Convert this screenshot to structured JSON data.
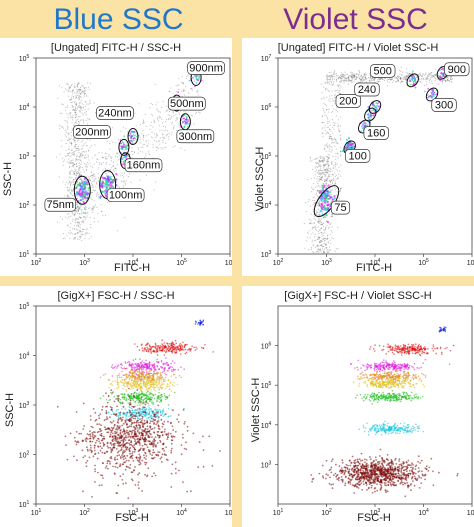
{
  "header": {
    "left_title": "Blue SSC",
    "right_title": "Violet SSC",
    "left_color": "#1f78c8",
    "right_color": "#7b2d90"
  },
  "chart_data": [
    {
      "type": "scatter",
      "title": "[Ungated] FITC-H / SSC-H",
      "xlabel": "FITC-H",
      "ylabel": "SSC-H",
      "xscale": "log",
      "yscale": "log",
      "xlim": [
        100,
        1000000
      ],
      "ylim": [
        10,
        100000
      ],
      "x_ticks": [
        "10^2",
        "10^3",
        "10^4",
        "10^5",
        "10^6"
      ],
      "y_ticks": [
        "10^1",
        "10^2",
        "10^3",
        "10^4",
        "10^5"
      ],
      "populations": [
        {
          "name": "75nm",
          "x": 900,
          "y": 200
        },
        {
          "name": "100nm",
          "x": 3000,
          "y": 260
        },
        {
          "name": "160nm",
          "x": 7000,
          "y": 800
        },
        {
          "name": "200nm",
          "x": 6500,
          "y": 1500
        },
        {
          "name": "240nm",
          "x": 10000,
          "y": 2500
        },
        {
          "name": "300nm",
          "x": 120000,
          "y": 5000
        },
        {
          "name": "500nm",
          "x": 80000,
          "y": 12000
        },
        {
          "name": "900nm",
          "x": 200000,
          "y": 40000
        }
      ]
    },
    {
      "type": "scatter",
      "title": "[Ungated] FITC-H / Violet SSC-H",
      "xlabel": "FITC-H",
      "ylabel": "Violet SSC-H",
      "xscale": "log",
      "yscale": "log",
      "xlim": [
        100,
        1000000
      ],
      "ylim": [
        1000,
        10000000
      ],
      "x_ticks": [
        "10^2",
        "10^3",
        "10^4",
        "10^5",
        "10^6"
      ],
      "y_ticks": [
        "10^3",
        "10^4",
        "10^5",
        "10^6",
        "10^7"
      ],
      "populations": [
        {
          "name": "75",
          "x": 1000,
          "y": 12000
        },
        {
          "name": "100",
          "x": 3000,
          "y": 150000
        },
        {
          "name": "160",
          "x": 6000,
          "y": 400000
        },
        {
          "name": "200",
          "x": 8000,
          "y": 700000
        },
        {
          "name": "240",
          "x": 10000,
          "y": 1000000
        },
        {
          "name": "300",
          "x": 150000,
          "y": 1800000
        },
        {
          "name": "500",
          "x": 60000,
          "y": 3500000
        },
        {
          "name": "900",
          "x": 250000,
          "y": 5000000
        }
      ]
    },
    {
      "type": "scatter",
      "title": "[GigX+] FSC-H / SSC-H",
      "xlabel": "FSC-H",
      "ylabel": "SSC-H",
      "xscale": "log",
      "yscale": "log",
      "xlim": [
        10,
        100000
      ],
      "ylim": [
        10,
        100000
      ],
      "x_ticks": [
        "10^1",
        "10^2",
        "10^3",
        "10^4",
        "10^5"
      ],
      "y_ticks": [
        "10^1",
        "10^2",
        "10^3",
        "10^4",
        "10^5"
      ],
      "populations": [
        {
          "color": "#0b1fd8",
          "x": 25000,
          "y": 45000
        },
        {
          "color": "#e01010",
          "x": 5000,
          "y": 14000
        },
        {
          "color": "#e020e0",
          "x": 1800,
          "y": 6000
        },
        {
          "color": "#e08a20",
          "x": 1600,
          "y": 3800
        },
        {
          "color": "#e0c020",
          "x": 1600,
          "y": 2600
        },
        {
          "color": "#20c020",
          "x": 1500,
          "y": 1400
        },
        {
          "color": "#20c8e0",
          "x": 1500,
          "y": 700
        },
        {
          "color": "#7a0a0a",
          "x": 900,
          "y": 300
        }
      ]
    },
    {
      "type": "scatter",
      "title": "[GigX+] FSC-H / Violet SSC-H",
      "xlabel": "FSC-H",
      "ylabel": "Violet SSC-H",
      "xscale": "log",
      "yscale": "log",
      "xlim": [
        10,
        100000
      ],
      "ylim": [
        100,
        10000000
      ],
      "x_ticks": [
        "10^1",
        "10^2",
        "10^3",
        "10^4",
        "10^5"
      ],
      "y_ticks": [
        "10^3",
        "10^4",
        "10^5",
        "10^6"
      ],
      "populations": [
        {
          "color": "#0b1fd8",
          "x": 25000,
          "y": 2500000
        },
        {
          "color": "#e01010",
          "x": 5000,
          "y": 800000
        },
        {
          "color": "#e020e0",
          "x": 2000,
          "y": 300000
        },
        {
          "color": "#e08a20",
          "x": 2000,
          "y": 170000
        },
        {
          "color": "#e0c020",
          "x": 2000,
          "y": 110000
        },
        {
          "color": "#20c020",
          "x": 2000,
          "y": 50000
        },
        {
          "color": "#20c8e0",
          "x": 2000,
          "y": 8000
        },
        {
          "color": "#7a0a0a",
          "x": 1200,
          "y": 600
        }
      ]
    }
  ]
}
